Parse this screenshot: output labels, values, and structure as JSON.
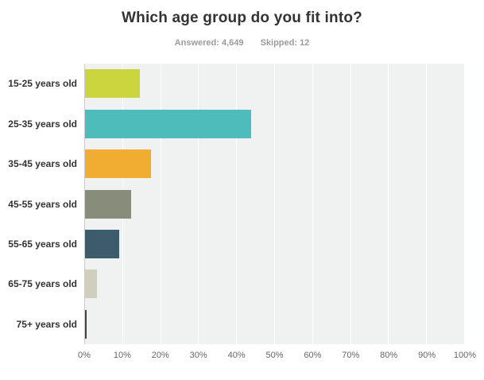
{
  "header": {
    "title": "Which age group do you fit into?",
    "answered_label": "Answered: 4,649",
    "skipped_label": "Skipped: 12"
  },
  "chart_data": {
    "type": "bar",
    "orientation": "horizontal",
    "title": "Which age group do you fit into?",
    "subtitle": "Answered: 4,649  Skipped: 12",
    "answered": 4649,
    "skipped": 12,
    "categories": [
      "15-25 years old",
      "25-35 years old",
      "35-45 years old",
      "45-55 years old",
      "55-65 years old",
      "65-75 years old",
      "75+ years old"
    ],
    "values": [
      14.5,
      43.8,
      17.3,
      12.1,
      9.0,
      3.1,
      0.5
    ],
    "unit": "%",
    "bar_colors": [
      "#cbd53e",
      "#4ebcbb",
      "#f0ad31",
      "#888d7b",
      "#3c5c6d",
      "#d0cebc",
      "#44423c"
    ],
    "xlim": [
      0,
      100
    ],
    "x_ticks": [
      "0%",
      "10%",
      "20%",
      "30%",
      "40%",
      "50%",
      "60%",
      "70%",
      "80%",
      "90%",
      "100%"
    ],
    "grid": true,
    "legend": "none",
    "plot_background": "#f0f1f1",
    "gridline_color": "#ffffff",
    "axis_line_color": "#cbcbcb"
  }
}
